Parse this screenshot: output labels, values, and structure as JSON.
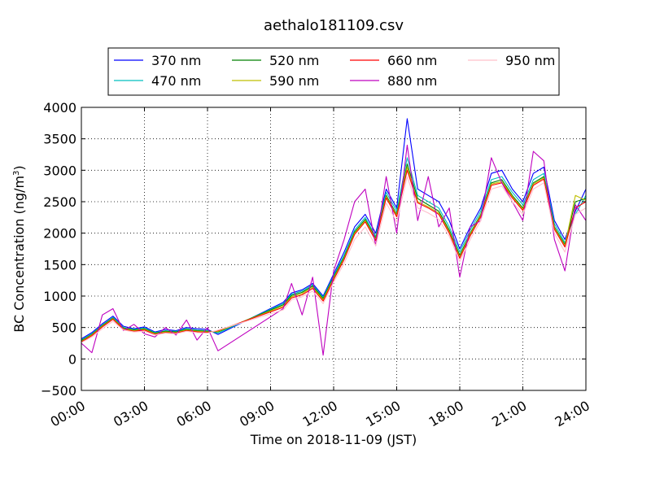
{
  "chart_data": {
    "type": "line",
    "title": "aethalo181109.csv",
    "xlabel": "Time on 2018-11-09 (JST)",
    "ylabel": "BC Concentration (ng/m",
    "ylabel_sup": "3",
    "ylabel_close": ")",
    "xlim": [
      0,
      24
    ],
    "ylim": [
      -500,
      4000
    ],
    "x_ticks": [
      0,
      3,
      6,
      9,
      12,
      15,
      18,
      21,
      24
    ],
    "x_tick_labels": [
      "00:00",
      "03:00",
      "06:00",
      "09:00",
      "12:00",
      "15:00",
      "18:00",
      "21:00",
      "24:00"
    ],
    "y_ticks": [
      -500,
      0,
      500,
      1000,
      1500,
      2000,
      2500,
      3000,
      3500,
      4000
    ],
    "y_tick_labels": [
      "−500",
      "0",
      "500",
      "1000",
      "1500",
      "2000",
      "2500",
      "3000",
      "3500",
      "4000"
    ],
    "grid": true,
    "legend_position": "top",
    "x": [
      0.0,
      0.5,
      1.0,
      1.5,
      2.0,
      2.5,
      3.0,
      3.5,
      4.0,
      4.5,
      5.0,
      5.5,
      6.0,
      6.5,
      9.6,
      10.0,
      10.5,
      11.0,
      11.5,
      12.0,
      12.5,
      13.0,
      13.5,
      14.0,
      14.5,
      15.0,
      15.5,
      16.0,
      16.5,
      17.0,
      17.5,
      18.0,
      18.5,
      19.0,
      19.5,
      20.0,
      20.5,
      21.0,
      21.5,
      22.0,
      22.5,
      23.0,
      23.5,
      24.0
    ],
    "series": [
      {
        "name": "370 nm",
        "color": "#0000ff",
        "values": [
          320,
          420,
          560,
          680,
          520,
          480,
          510,
          430,
          470,
          450,
          500,
          480,
          470,
          390,
          900,
          1050,
          1100,
          1200,
          1000,
          1350,
          1700,
          2100,
          2300,
          2000,
          2700,
          2400,
          3820,
          2700,
          2600,
          2500,
          2200,
          1750,
          2100,
          2400,
          2950,
          3000,
          2700,
          2500,
          2950,
          3050,
          2200,
          1900,
          2350,
          2700
        ]
      },
      {
        "name": "470 nm",
        "color": "#00bfbf",
        "values": [
          300,
          400,
          540,
          660,
          500,
          470,
          490,
          420,
          450,
          440,
          480,
          460,
          450,
          410,
          880,
          1030,
          1080,
          1180,
          980,
          1320,
          1650,
          2050,
          2250,
          1950,
          2650,
          2350,
          3200,
          2600,
          2500,
          2400,
          2100,
          1700,
          2050,
          2350,
          2850,
          2900,
          2650,
          2450,
          2850,
          2950,
          2150,
          1850,
          2300,
          2600
        ]
      },
      {
        "name": "520 nm",
        "color": "#008000",
        "values": [
          290,
          390,
          530,
          650,
          490,
          460,
          480,
          410,
          440,
          430,
          470,
          450,
          440,
          430,
          860,
          1010,
          1060,
          1160,
          960,
          1300,
          1620,
          2020,
          2220,
          1920,
          2600,
          2300,
          3100,
          2550,
          2450,
          2350,
          2050,
          1650,
          2000,
          2300,
          2800,
          2850,
          2600,
          2400,
          2800,
          2900,
          2100,
          1820,
          2500,
          2550
        ]
      },
      {
        "name": "590 nm",
        "color": "#bfbf00",
        "values": [
          280,
          380,
          520,
          640,
          480,
          450,
          470,
          400,
          430,
          420,
          460,
          440,
          430,
          440,
          840,
          990,
          1040,
          1140,
          940,
          1280,
          1600,
          2000,
          2200,
          1900,
          2580,
          2280,
          3050,
          2500,
          2420,
          2320,
          2020,
          1620,
          1980,
          2280,
          2780,
          2820,
          2580,
          2380,
          2780,
          2880,
          2080,
          1800,
          2600,
          2520
        ]
      },
      {
        "name": "660 nm",
        "color": "#ff0000",
        "values": [
          270,
          370,
          510,
          630,
          470,
          440,
          460,
          390,
          420,
          410,
          450,
          430,
          420,
          450,
          820,
          970,
          1020,
          1120,
          920,
          1260,
          1580,
          1980,
          2180,
          1880,
          2560,
          2260,
          3000,
          2480,
          2400,
          2300,
          2000,
          1600,
          1960,
          2260,
          2760,
          2800,
          2560,
          2360,
          2760,
          2860,
          2060,
          1780,
          2400,
          2500
        ]
      },
      {
        "name": "880 nm",
        "color": "#bf00bf",
        "values": [
          250,
          100,
          700,
          800,
          450,
          550,
          400,
          350,
          500,
          380,
          620,
          300,
          500,
          130,
          800,
          1200,
          700,
          1300,
          60,
          1400,
          1900,
          2500,
          2700,
          1800,
          2900,
          2000,
          3400,
          2200,
          2900,
          2100,
          2400,
          1300,
          2100,
          2200,
          3200,
          2800,
          2500,
          2200,
          3300,
          3150,
          1900,
          1400,
          2450,
          2200
        ]
      },
      {
        "name": "950 nm",
        "color": "#ffc0cb",
        "values": [
          260,
          350,
          480,
          600,
          460,
          430,
          440,
          380,
          410,
          400,
          440,
          420,
          410,
          460,
          780,
          940,
          990,
          1080,
          880,
          1220,
          1520,
          1900,
          2100,
          1800,
          2480,
          2180,
          2900,
          2400,
          2320,
          2220,
          1950,
          1550,
          1900,
          2200,
          2700,
          2750,
          2500,
          2300,
          2700,
          2800,
          2000,
          1700,
          2300,
          2400
        ]
      }
    ]
  }
}
